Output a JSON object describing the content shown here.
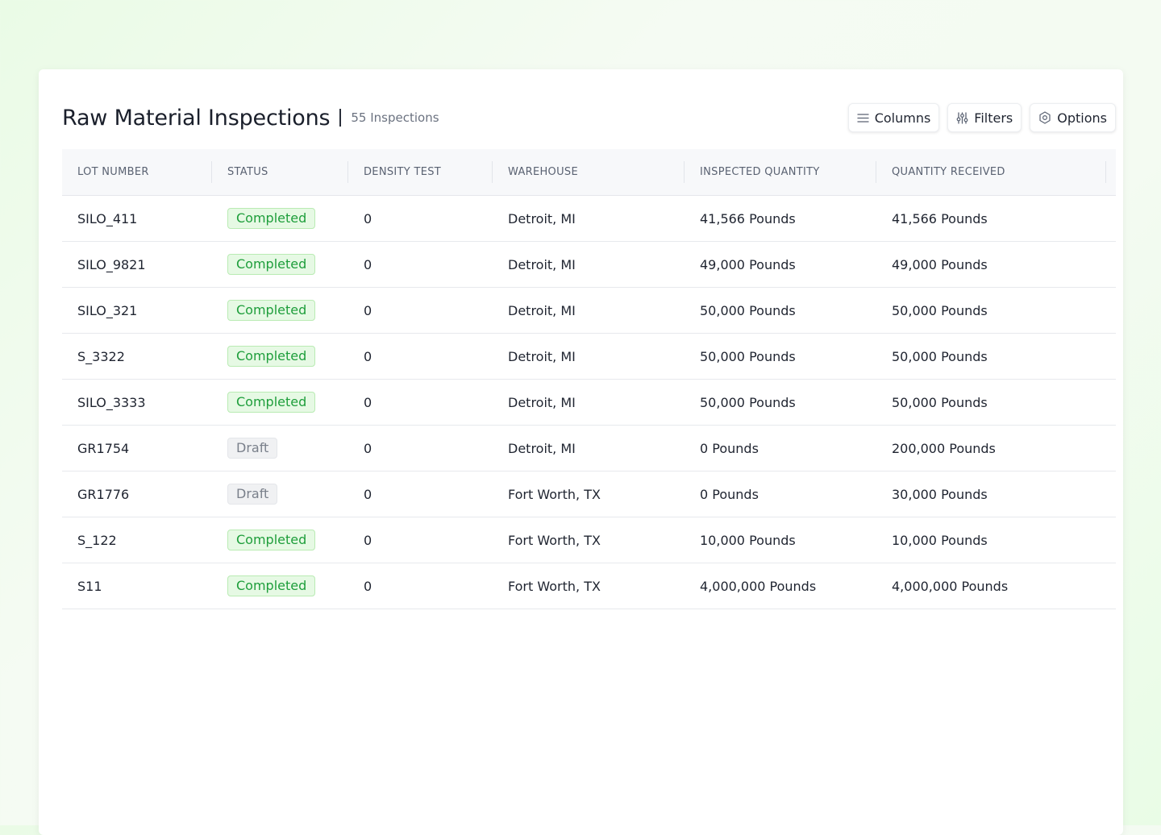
{
  "header": {
    "title": "Raw Material Inspections",
    "count": "55 Inspections"
  },
  "toolbar": {
    "columns_label": "Columns",
    "columns_icon": "list-icon",
    "filters_label": "Filters",
    "filters_icon": "sliders-icon",
    "options_label": "Options",
    "options_icon": "gear-icon"
  },
  "table": {
    "columns": [
      "LOT NUMBER",
      "STATUS",
      "DENSITY TEST",
      "WAREHOUSE",
      "INSPECTED QUANTITY",
      "QUANTITY RECEIVED"
    ],
    "rows": [
      {
        "lot": "SILO_411",
        "status": "Completed",
        "density": "0",
        "warehouse": "Detroit, MI",
        "inspected": "41,566 Pounds",
        "received": "41,566 Pounds"
      },
      {
        "lot": "SILO_9821",
        "status": "Completed",
        "density": "0",
        "warehouse": "Detroit, MI",
        "inspected": "49,000 Pounds",
        "received": "49,000 Pounds"
      },
      {
        "lot": "SILO_321",
        "status": "Completed",
        "density": "0",
        "warehouse": "Detroit, MI",
        "inspected": "50,000 Pounds",
        "received": "50,000 Pounds"
      },
      {
        "lot": "S_3322",
        "status": "Completed",
        "density": "0",
        "warehouse": "Detroit, MI",
        "inspected": "50,000 Pounds",
        "received": "50,000 Pounds"
      },
      {
        "lot": "SILO_3333",
        "status": "Completed",
        "density": "0",
        "warehouse": "Detroit, MI",
        "inspected": "50,000 Pounds",
        "received": "50,000 Pounds"
      },
      {
        "lot": "GR1754",
        "status": "Draft",
        "density": "0",
        "warehouse": "Detroit, MI",
        "inspected": "0 Pounds",
        "received": "200,000 Pounds"
      },
      {
        "lot": "GR1776",
        "status": "Draft",
        "density": "0",
        "warehouse": "Fort Worth, TX",
        "inspected": "0 Pounds",
        "received": "30,000 Pounds"
      },
      {
        "lot": "S_122",
        "status": "Completed",
        "density": "0",
        "warehouse": "Fort Worth, TX",
        "inspected": "10,000 Pounds",
        "received": "10,000 Pounds"
      },
      {
        "lot": "S11",
        "status": "Completed",
        "density": "0",
        "warehouse": "Fort Worth, TX",
        "inspected": "4,000,000 Pounds",
        "received": "4,000,000 Pounds"
      }
    ]
  },
  "colors": {
    "completed_text": "#1e9e3b",
    "completed_bg": "#e6f9e4",
    "draft_text": "#7a808b",
    "draft_bg": "#f0f1f3"
  }
}
